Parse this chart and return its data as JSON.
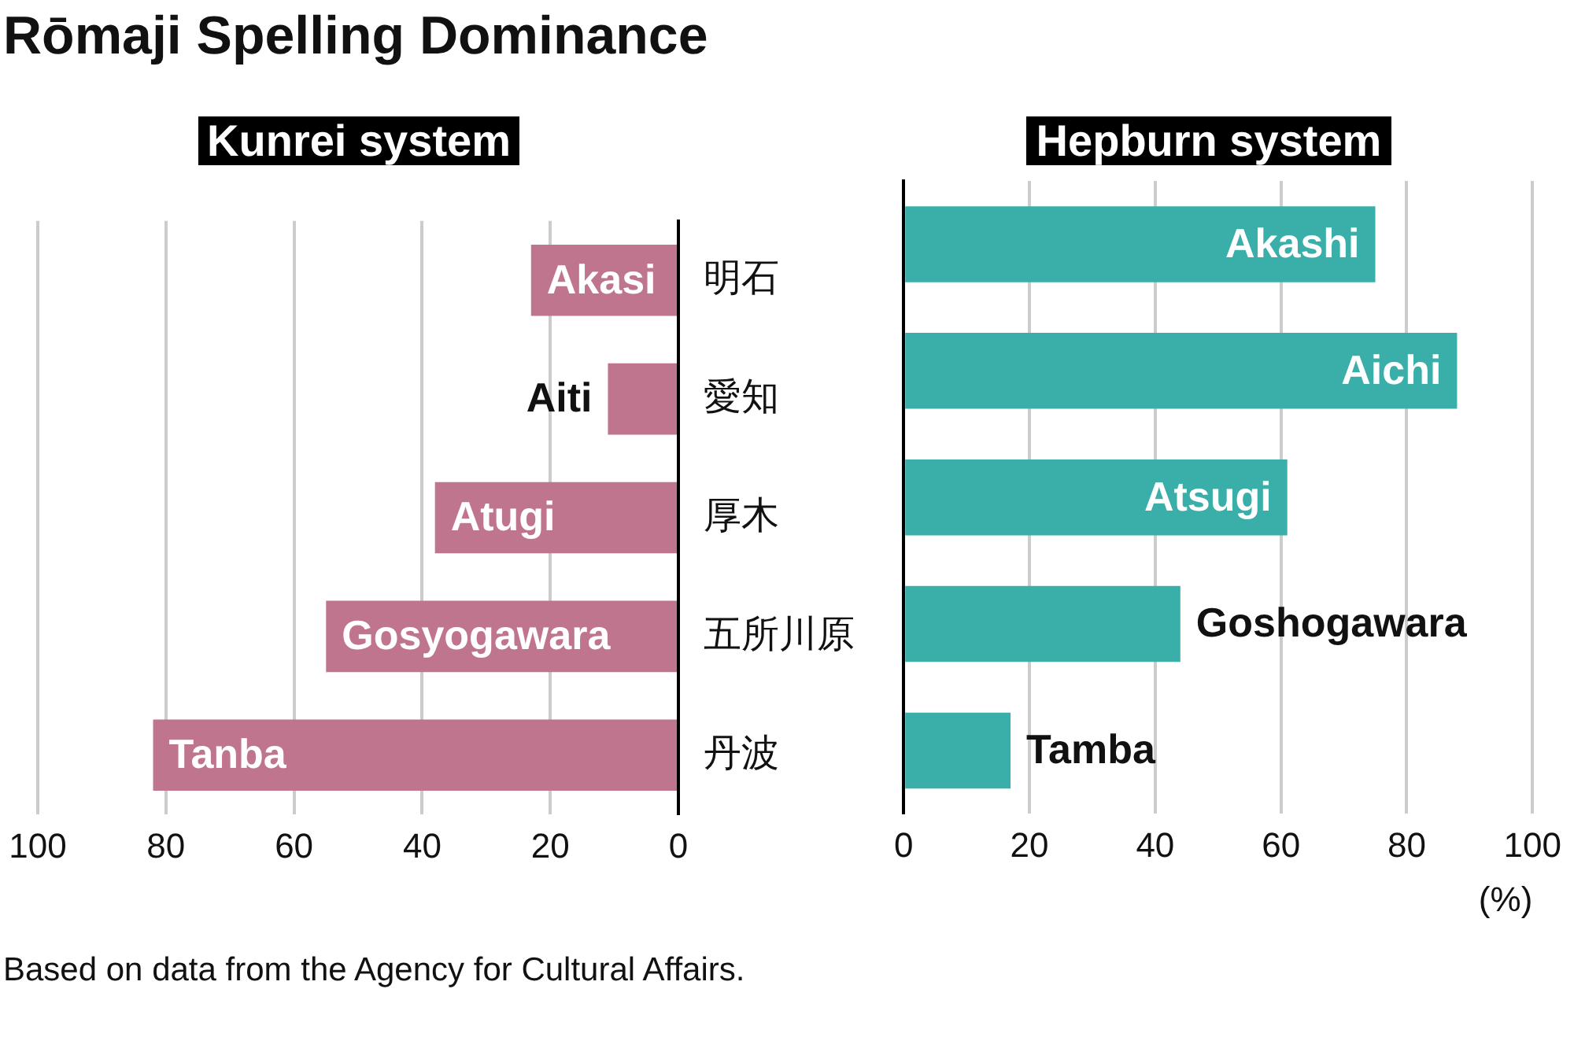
{
  "chart_data": [
    {
      "type": "bar",
      "orientation": "horizontal",
      "title": "Rōmaji Spelling Dominance",
      "subtitle": "Kunrei system",
      "categories": [
        "明石",
        "愛知",
        "厚木",
        "五所川原",
        "丹波"
      ],
      "values": [
        23,
        11,
        38,
        55,
        82
      ],
      "color": "#c0758f",
      "xlim": [
        100,
        0
      ],
      "xticks": [
        0,
        20,
        40,
        60,
        80,
        100
      ],
      "grid": "x",
      "annotations": [
        {
          "text": "Akasi",
          "x": 23,
          "y": "明石"
        },
        {
          "text": "Aiti",
          "x": 11,
          "y": "愛知"
        },
        {
          "text": "Atugi",
          "x": 38,
          "y": "厚木"
        },
        {
          "text": "Gosyogawara",
          "x": 55,
          "y": "五所川原"
        },
        {
          "text": "Tanba",
          "x": 82,
          "y": "丹波"
        },
        "Based on data from the Agency for Cultural Affairs."
      ]
    },
    {
      "type": "bar",
      "orientation": "horizontal",
      "title": "Hepburn system",
      "xlabel": "(%)",
      "categories": [
        "明石",
        "愛知",
        "厚木",
        "五所川原",
        "丹波"
      ],
      "values": [
        75,
        88,
        61,
        44,
        17
      ],
      "color": "#3aafa9",
      "xlim": [
        0,
        100
      ],
      "xticks": [
        0,
        20,
        40,
        60,
        80,
        100
      ],
      "grid": "x",
      "tick_labels": "x",
      "annotations": [
        {
          "text": "Akashi",
          "x": 75,
          "y": "明石"
        },
        {
          "text": "Aichi",
          "x": 88,
          "y": "愛知"
        },
        {
          "text": "Atsugi",
          "x": 61,
          "y": "厚木"
        },
        {
          "text": "Goshogawara",
          "x": 44,
          "y": "五所川原"
        },
        {
          "text": "Tamba",
          "x": 17,
          "y": "丹波"
        }
      ]
    }
  ]
}
